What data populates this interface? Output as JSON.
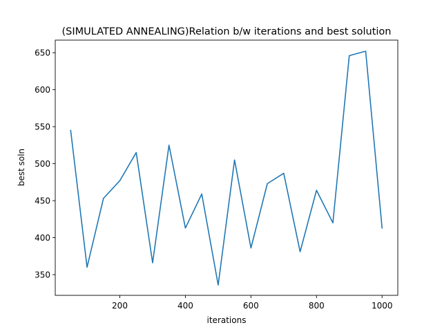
{
  "chart_data": {
    "type": "line",
    "title": "(SIMULATED ANNEALING)Relation b/w iterations and best solution",
    "xlabel": "iterations",
    "ylabel": "best soln",
    "xlim": [
      3,
      1048
    ],
    "ylim": [
      322,
      667
    ],
    "xticks": [
      200,
      400,
      600,
      800,
      1000
    ],
    "yticks": [
      350,
      400,
      450,
      500,
      550,
      600,
      650
    ],
    "grid": false,
    "series": [
      {
        "color": "#1f77b4",
        "x": [
          50,
          100,
          150,
          200,
          250,
          300,
          350,
          400,
          450,
          500,
          550,
          600,
          650,
          700,
          750,
          800,
          850,
          900,
          950,
          1000
        ],
        "y": [
          545,
          360,
          453,
          477,
          515,
          366,
          525,
          413,
          459,
          336,
          505,
          386,
          473,
          487,
          381,
          464,
          420,
          646,
          652,
          413
        ]
      }
    ]
  }
}
